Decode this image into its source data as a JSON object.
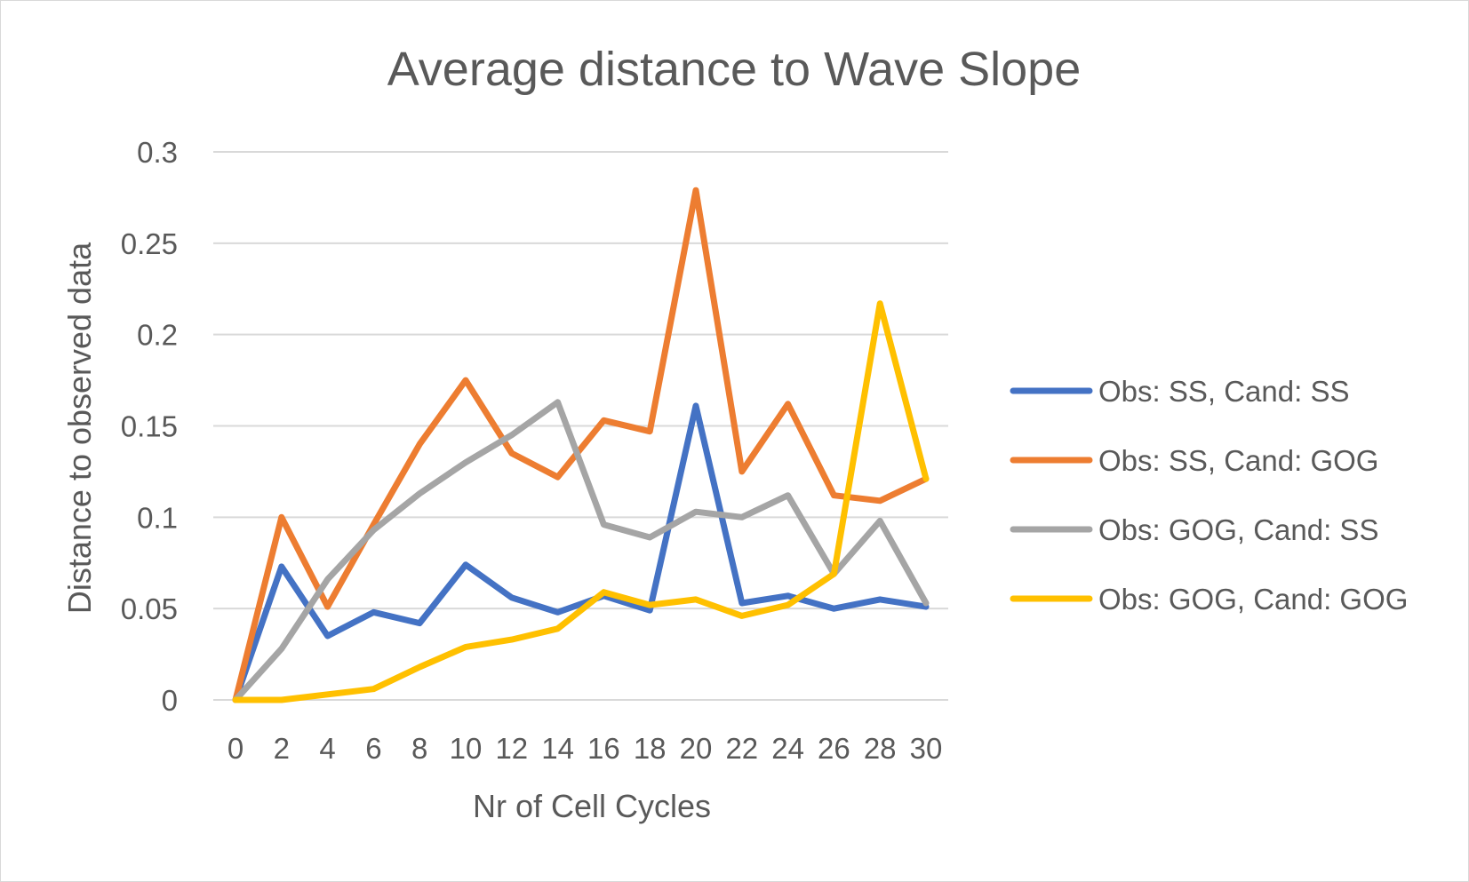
{
  "chart_data": {
    "type": "line",
    "title": "Average distance to Wave Slope",
    "xlabel": "Nr of Cell Cycles",
    "ylabel": "Distance to observed data",
    "x": [
      0,
      2,
      4,
      6,
      8,
      10,
      12,
      14,
      16,
      18,
      20,
      22,
      24,
      26,
      28,
      30
    ],
    "y_ticks": [
      "0",
      "0.05",
      "0.1",
      "0.15",
      "0.2",
      "0.25",
      "0.3"
    ],
    "ylim": [
      0,
      0.3
    ],
    "grid": true,
    "legend_position": "right",
    "series": [
      {
        "name": "Obs: SS, Cand: SS",
        "color": "#4472c4",
        "values": [
          0,
          0.073,
          0.035,
          0.048,
          0.042,
          0.074,
          0.056,
          0.048,
          0.057,
          0.049,
          0.161,
          0.053,
          0.057,
          0.05,
          0.055,
          0.051
        ]
      },
      {
        "name": "Obs: SS, Cand: GOG",
        "color": "#ed7d31",
        "values": [
          0,
          0.1,
          0.051,
          0.096,
          0.14,
          0.175,
          0.135,
          0.122,
          0.153,
          0.147,
          0.279,
          0.125,
          0.162,
          0.112,
          0.109,
          0.121
        ]
      },
      {
        "name": "Obs: GOG, Cand: SS",
        "color": "#a5a5a5",
        "values": [
          0,
          0.028,
          0.066,
          0.093,
          0.113,
          0.13,
          0.145,
          0.163,
          0.096,
          0.089,
          0.103,
          0.1,
          0.112,
          0.069,
          0.098,
          0.053
        ]
      },
      {
        "name": "Obs: GOG, Cand: GOG",
        "color": "#ffc000",
        "values": [
          0,
          0,
          0.003,
          0.006,
          0.018,
          0.029,
          0.033,
          0.039,
          0.059,
          0.052,
          0.055,
          0.046,
          0.052,
          0.069,
          0.217,
          0.121
        ]
      }
    ]
  }
}
